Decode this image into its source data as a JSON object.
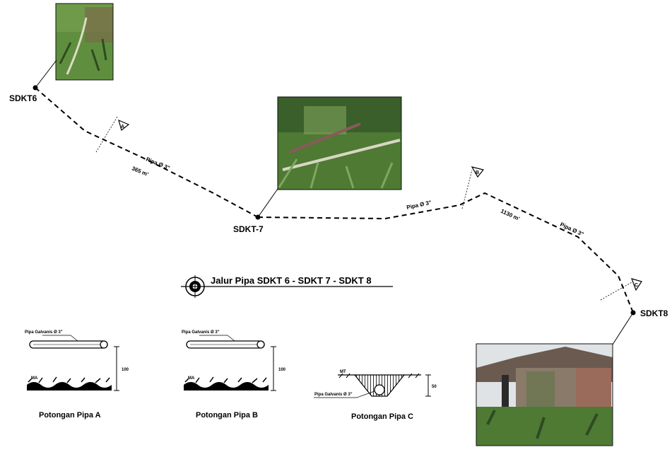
{
  "nodes": {
    "sdkt6": "SDKT6",
    "sdkt7": "SDKT-7",
    "sdkt8": "SDKT8"
  },
  "segments": {
    "seg1_pipe": "Pipa Ø 3\"",
    "seg1_length": "365 m'",
    "seg2_pipe": "Pipa Ø 3\"",
    "seg3_pipe": "Pipa Ø 3\"",
    "seg3_length": "1130 m'"
  },
  "section_markers": [
    "A",
    "B",
    "C"
  ],
  "title": "Jalur Pipa SDKT 6 - SDKT 7 - SDKT 8",
  "sections": {
    "a": {
      "pipe_label": "Pipa Galvanis Ø 3\"",
      "ground_label": "MA",
      "height": "100",
      "caption": "Potongan Pipa A"
    },
    "b": {
      "pipe_label": "Pipa Galvanis Ø 3\"",
      "ground_label": "MA",
      "height": "100",
      "caption": "Potongan Pipa B"
    },
    "c": {
      "pipe_label": "Pipa Galvanis Ø 3\"",
      "ground_label": "MT",
      "height": "50",
      "caption": "Potongan Pipa C"
    }
  },
  "colors": {
    "line": "#000000",
    "photo_grass": "#5f8f3e",
    "photo_dark": "#2f4a22",
    "photo_soil": "#7a6a4a",
    "photo_sky": "#dfe3e6"
  }
}
